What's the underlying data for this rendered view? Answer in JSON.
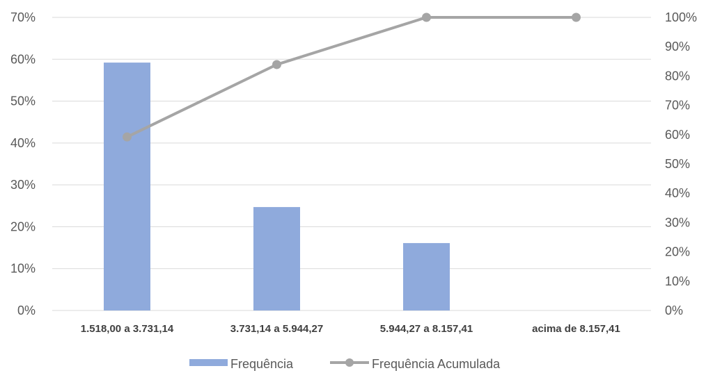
{
  "chart_data": {
    "type": "bar",
    "categories": [
      "1.518,00 a 3.731,14",
      "3.731,14 a 5.944,27",
      "5.944,27 a 8.157,41",
      "acima de 8.157,41"
    ],
    "series": [
      {
        "name": "Frequência",
        "type": "bar",
        "axis": "left",
        "values": [
          59.2,
          24.7,
          16.1,
          0
        ],
        "color": "#8faadc"
      },
      {
        "name": "Frequência Acumulada",
        "type": "line",
        "axis": "right",
        "values": [
          59.2,
          83.9,
          100,
          100
        ],
        "color": "#a5a5a5"
      }
    ],
    "left_axis": {
      "min": 0,
      "max": 70,
      "step": 10,
      "ticks": [
        "0%",
        "10%",
        "20%",
        "30%",
        "40%",
        "50%",
        "60%",
        "70%"
      ]
    },
    "right_axis": {
      "min": 0,
      "max": 100,
      "step": 10,
      "ticks": [
        "0%",
        "10%",
        "20%",
        "30%",
        "40%",
        "50%",
        "60%",
        "70%",
        "80%",
        "90%",
        "100%"
      ]
    },
    "grid": true,
    "legend_position": "bottom",
    "gridline_color": "#d9d9d9"
  }
}
